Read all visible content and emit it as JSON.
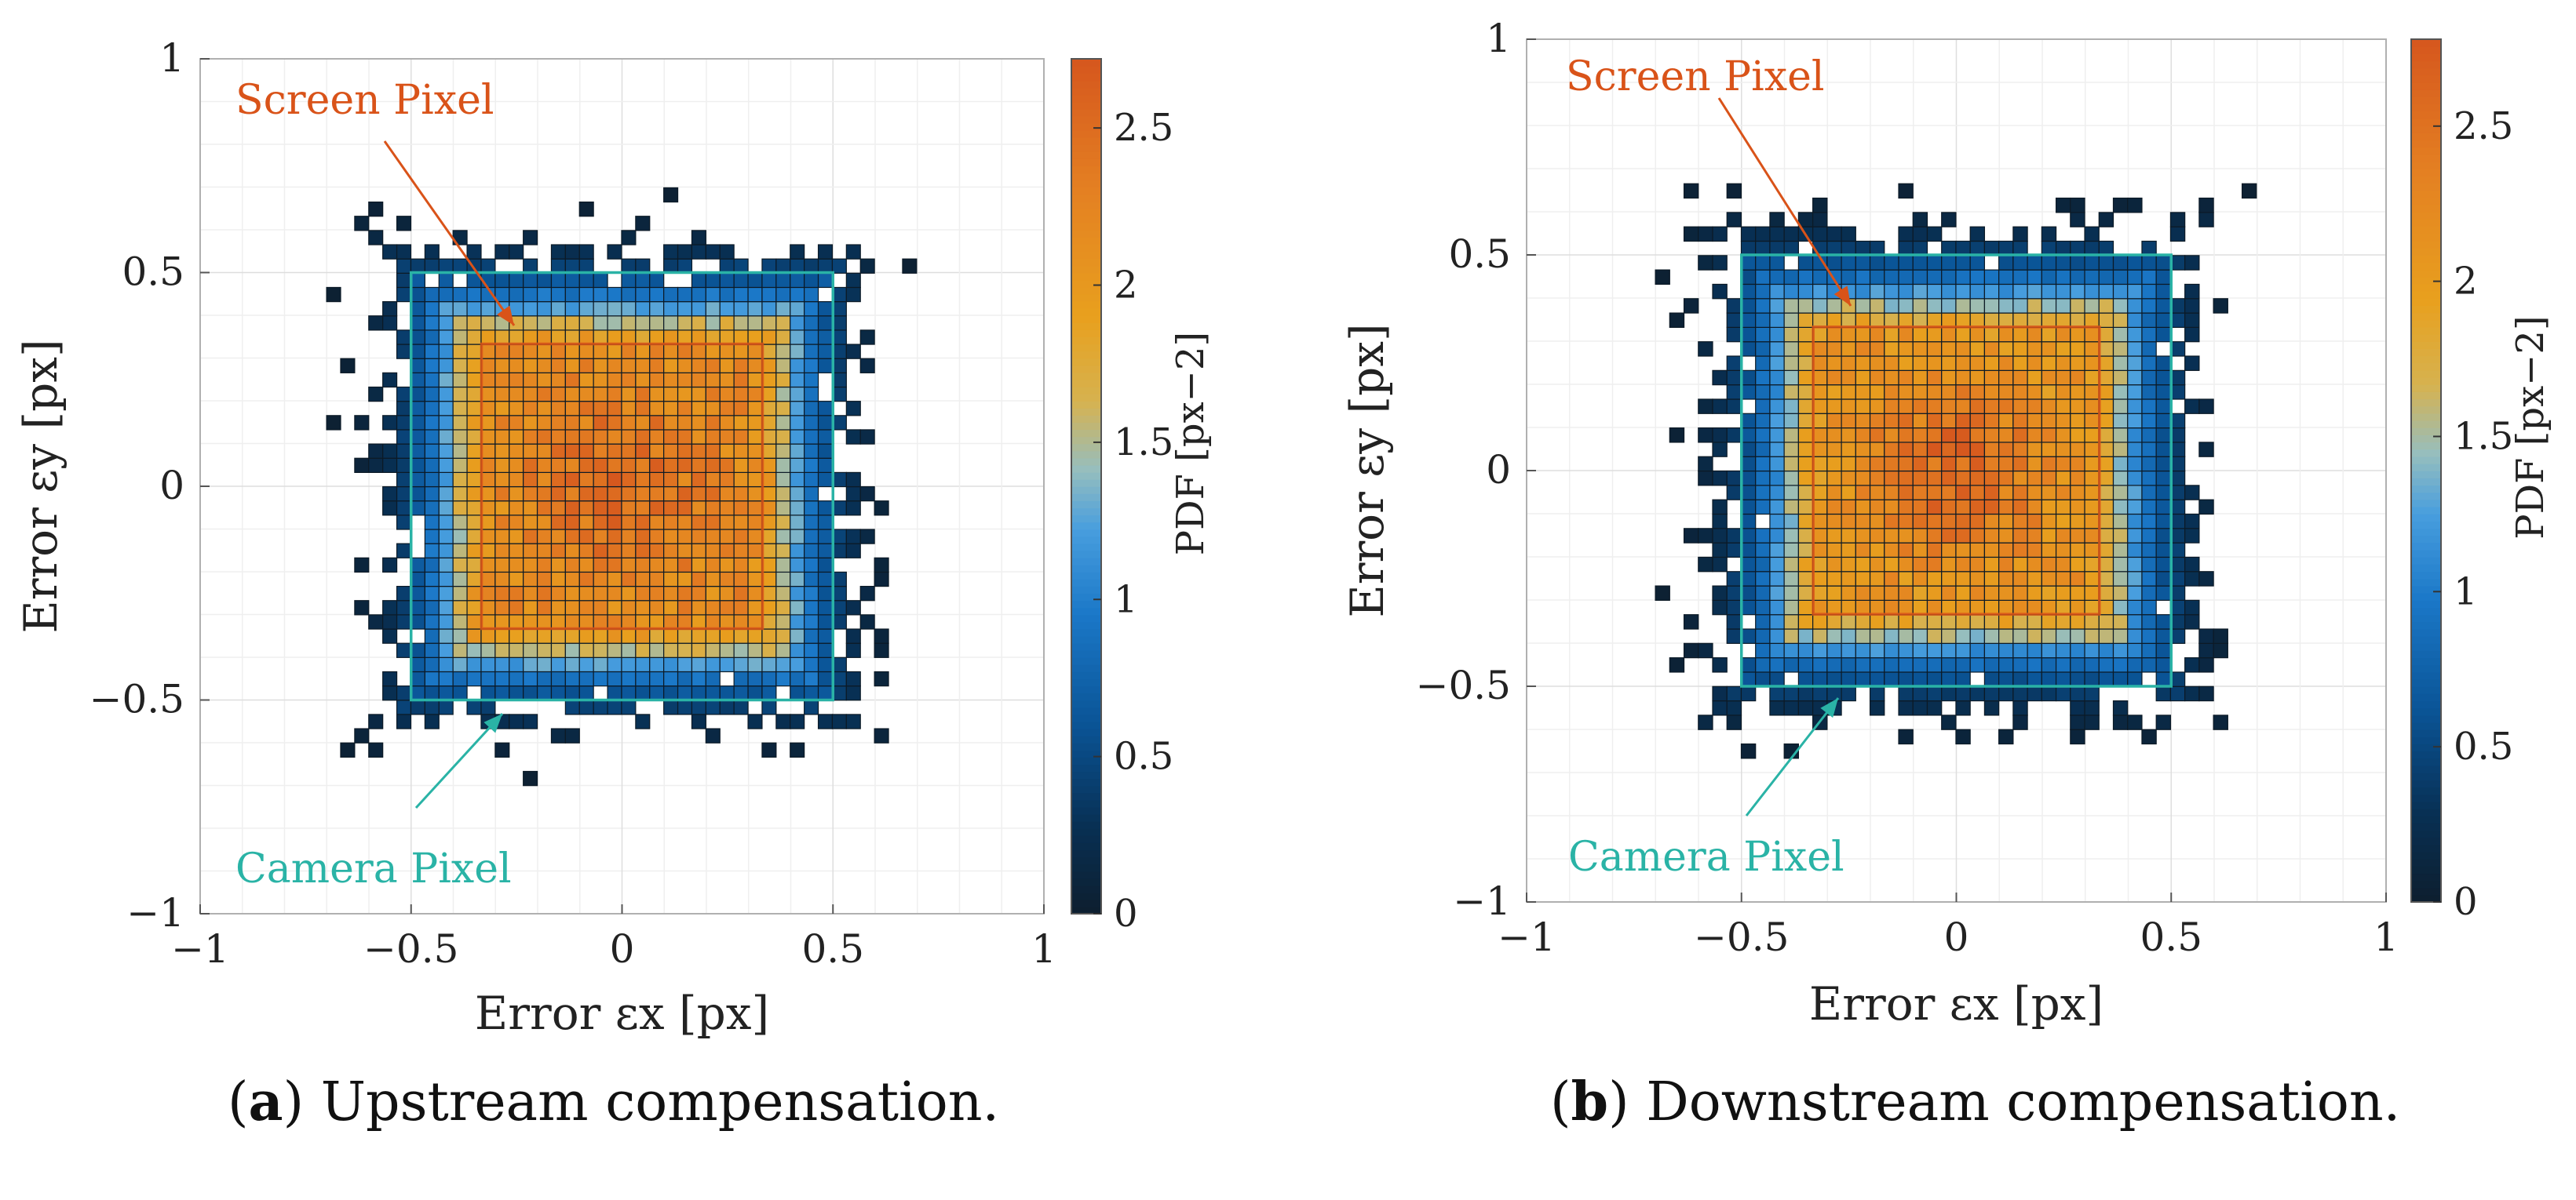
{
  "chart_data": [
    {
      "type": "heatmap",
      "panel": "(a)",
      "caption_label": "a",
      "caption_text": "Upstream compensation.",
      "xlabel": "Error εx [px]",
      "ylabel": "Error εy [px]",
      "xlim": [
        -1,
        1
      ],
      "ylim": [
        -1,
        1
      ],
      "xticks": [
        "−1",
        "−0.5",
        "0",
        "0.5",
        "1"
      ],
      "yticks": [
        "−1",
        "−0.5",
        "0",
        "0.5",
        "1"
      ],
      "grid": true,
      "bin_width": 0.0333,
      "colorbar": {
        "label": "PDF [px−2]",
        "range": [
          0,
          2.72
        ],
        "ticks": [
          "0",
          "0.5",
          "1",
          "1.5",
          "2",
          "2.5"
        ]
      },
      "peak_pdf": 2.6,
      "plateau_pdf": 2.2,
      "camera_pixel_box": {
        "x": [
          -0.5,
          0.5
        ],
        "y": [
          -0.5,
          0.5
        ],
        "color": "#2ab3a6"
      },
      "screen_pixel_box": {
        "x": [
          -0.333,
          0.333
        ],
        "y": [
          -0.333,
          0.333
        ],
        "color": "#d95319"
      },
      "annotations": [
        {
          "text": "Screen Pixel",
          "color": "#d95319"
        },
        {
          "text": "Camera Pixel",
          "color": "#2ab3a6"
        }
      ]
    },
    {
      "type": "heatmap",
      "panel": "(b)",
      "caption_label": "b",
      "caption_text": "Downstream compensation.",
      "xlabel": "Error εx [px]",
      "ylabel": "Error εy [px]",
      "xlim": [
        -1,
        1
      ],
      "ylim": [
        -1,
        1
      ],
      "xticks": [
        "−1",
        "−0.5",
        "0",
        "0.5",
        "1"
      ],
      "yticks": [
        "−1",
        "−0.5",
        "0",
        "0.5",
        "1"
      ],
      "grid": true,
      "bin_width": 0.0333,
      "colorbar": {
        "label": "PDF [px−2]",
        "range": [
          0,
          2.78
        ],
        "ticks": [
          "0",
          "0.5",
          "1",
          "1.5",
          "2",
          "2.5"
        ]
      },
      "peak_pdf": 2.7,
      "plateau_pdf": 2.1,
      "camera_pixel_box": {
        "x": [
          -0.5,
          0.5
        ],
        "y": [
          -0.5,
          0.5
        ],
        "color": "#2ab3a6"
      },
      "screen_pixel_box": {
        "x": [
          -0.333,
          0.333
        ],
        "y": [
          -0.333,
          0.333
        ],
        "color": "#d95319"
      },
      "annotations": [
        {
          "text": "Screen Pixel",
          "color": "#d95319"
        },
        {
          "text": "Camera Pixel",
          "color": "#2ab3a6"
        }
      ]
    }
  ]
}
